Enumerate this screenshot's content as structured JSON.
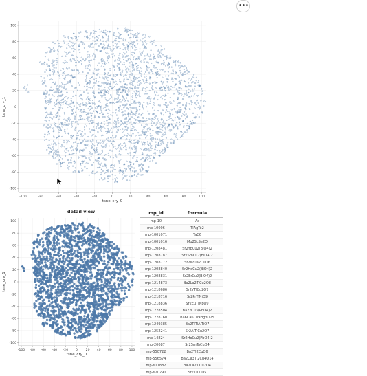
{
  "menu_button": {
    "label": "•••",
    "icon": "ellipsis-icon"
  },
  "chart_data": [
    {
      "type": "scatter",
      "title": "",
      "xlabel": "tsne_cry_0",
      "ylabel": "tsne_cry_1",
      "xlim": [
        -105,
        105
      ],
      "ylim": [
        -105,
        105
      ],
      "x_ticks": [
        -100,
        -80,
        -60,
        -40,
        -20,
        0,
        20,
        40,
        60,
        80,
        100
      ],
      "y_ticks": [
        -100,
        -80,
        -60,
        -40,
        -20,
        0,
        20,
        40,
        60,
        80,
        100
      ],
      "grid": true,
      "point_color": "#4c78a8",
      "marker_style": "hollow",
      "cloud": {
        "center": [
          3,
          5
        ],
        "radius": 92,
        "note_points": "dense point cloud"
      }
    },
    {
      "type": "scatter",
      "title": "detail view",
      "xlabel": "tsne_cry_0",
      "ylabel": "tsne_cry_1",
      "xlim": [
        -105,
        105
      ],
      "ylim": [
        -105,
        105
      ],
      "x_ticks": [
        -100,
        -80,
        -60,
        -40,
        -20,
        0,
        20,
        40,
        60,
        80,
        100
      ],
      "y_ticks": [
        -100,
        -80,
        -60,
        -40,
        -20,
        0,
        20,
        40,
        60,
        80,
        100
      ],
      "grid": true,
      "point_color": "#4c78a8",
      "marker_style": "filled",
      "cloud": {
        "center": [
          3,
          5
        ],
        "radius": 92
      }
    }
  ],
  "table": {
    "columns": [
      "mp_id",
      "formula"
    ],
    "rows": [
      [
        "mp-10",
        "As"
      ],
      [
        "mp-10006",
        "TlAgTe2"
      ],
      [
        "mp-1001071",
        "TaC6"
      ],
      [
        "mp-1001016",
        "Mg2ScSe2O"
      ],
      [
        "mp-1208481",
        "Sr2YbCu2(BiO4)2"
      ],
      [
        "mp-1208787",
        "Sr2SmCu2(BiO4)2"
      ],
      [
        "mp-1208772",
        "Sr2NdTa2CuO6"
      ],
      [
        "mp-1208840",
        "Sr2HoCu2(BiO4)2"
      ],
      [
        "mp-1208831",
        "Sr2ErCu2(BiO4)2"
      ],
      [
        "mp-1214873",
        "Ba2La2TiCu2O8"
      ],
      [
        "mp-1218686",
        "Sr2YTlCu2O7"
      ],
      [
        "mp-1218716",
        "Sr2PrTlNiO9"
      ],
      [
        "mp-1218836",
        "Sr2EuTlNbO9"
      ],
      [
        "mp-1228504",
        "Ba2YCu3(PbO4)2"
      ],
      [
        "mp-1228760",
        "Ba6Ca6Cu9Hg3O25"
      ],
      [
        "mp-1249385",
        "Ba2TlTlAlTiO7"
      ],
      [
        "mp-1252241",
        "Sr2AlTlCu2O7"
      ],
      [
        "mp-14824",
        "Sr2HoCu2(PbO4)2"
      ],
      [
        "mp-20087",
        "Sr2SmTaCuO4"
      ],
      [
        "mp-550722",
        "Ba2Tl2CuO6"
      ],
      [
        "mp-556574",
        "Ba2Ca3Tl2Cu4O14"
      ],
      [
        "mp-611882",
        "Ba2La2TiCu2O4"
      ],
      [
        "mp-620290",
        "SrZTlCuO5"
      ]
    ]
  }
}
